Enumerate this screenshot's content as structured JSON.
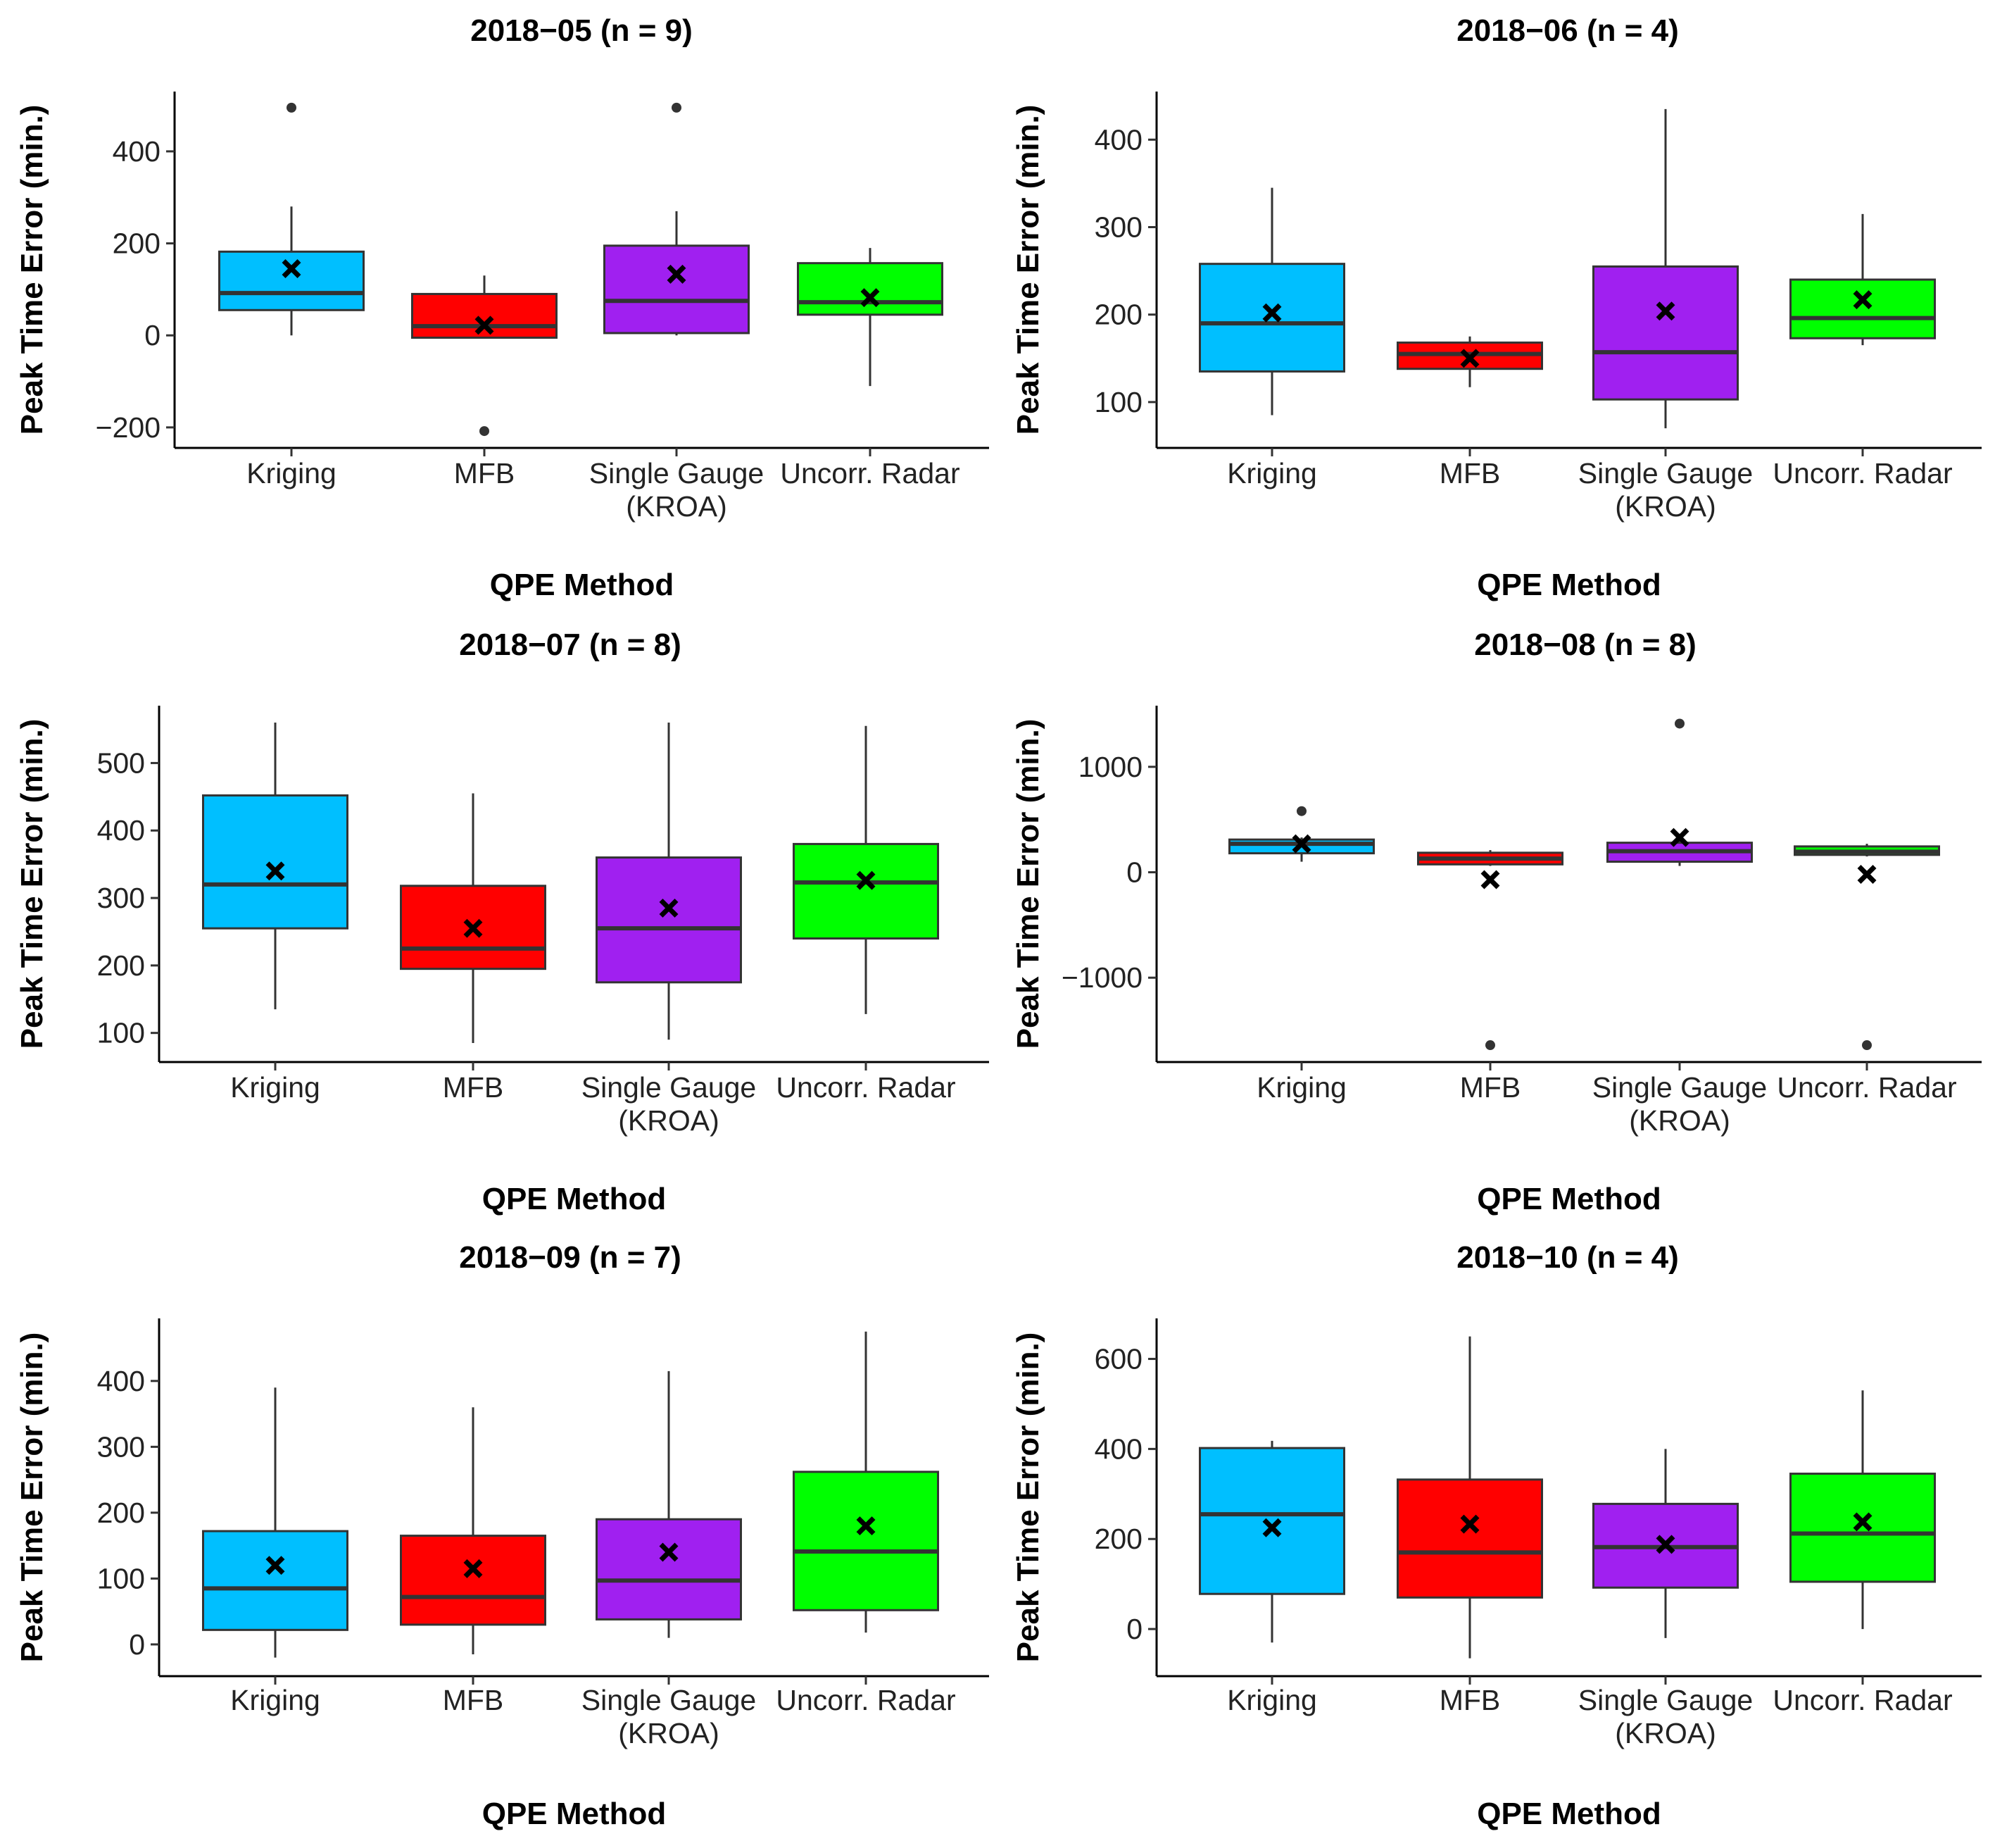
{
  "chart_data": [
    {
      "type": "boxplot",
      "title": "2018−05 (n = 9)",
      "xlabel": "QPE Method",
      "ylabel": "Peak Time Error (min.)",
      "ylim": [
        -240,
        530
      ],
      "yticks": [
        -200,
        0,
        200,
        400
      ],
      "yticklabels": [
        "−200",
        "0",
        "200",
        "400"
      ],
      "categories": [
        "Kriging",
        "MFB",
        "Single Gauge\n(KROA)",
        "Uncorr. Radar"
      ],
      "series": [
        {
          "name": "Kriging",
          "color": "#00BFFF",
          "whisker_low": 0,
          "q1": 55,
          "median": 92,
          "q3": 182,
          "whisker_high": 280,
          "mean": 145,
          "outliers": [
            495
          ]
        },
        {
          "name": "MFB",
          "color": "#FF0000",
          "whisker_low": -5,
          "q1": -5,
          "median": 20,
          "q3": 90,
          "whisker_high": 130,
          "mean": 22,
          "outliers": [
            -208
          ]
        },
        {
          "name": "Single Gauge (KROA)",
          "color": "#A020F0",
          "whisker_low": 0,
          "q1": 5,
          "median": 75,
          "q3": 195,
          "whisker_high": 270,
          "mean": 133,
          "outliers": [
            495
          ]
        },
        {
          "name": "Uncorr. Radar",
          "color": "#00FF00",
          "whisker_low": -110,
          "q1": 45,
          "median": 72,
          "q3": 157,
          "whisker_high": 190,
          "mean": 82,
          "outliers": []
        }
      ]
    },
    {
      "type": "boxplot",
      "title": "2018−06 (n = 4)",
      "xlabel": "QPE Method",
      "ylabel": "Peak Time Error (min.)",
      "ylim": [
        50,
        455
      ],
      "yticks": [
        100,
        200,
        300,
        400
      ],
      "yticklabels": [
        "100",
        "200",
        "300",
        "400"
      ],
      "categories": [
        "Kriging",
        "MFB",
        "Single Gauge\n(KROA)",
        "Uncorr. Radar"
      ],
      "series": [
        {
          "name": "Kriging",
          "color": "#00BFFF",
          "whisker_low": 85,
          "q1": 135,
          "median": 190,
          "q3": 258,
          "whisker_high": 345,
          "mean": 202,
          "outliers": []
        },
        {
          "name": "MFB",
          "color": "#FF0000",
          "whisker_low": 117,
          "q1": 138,
          "median": 155,
          "q3": 168,
          "whisker_high": 175,
          "mean": 150,
          "outliers": []
        },
        {
          "name": "Single Gauge (KROA)",
          "color": "#A020F0",
          "whisker_low": 70,
          "q1": 103,
          "median": 157,
          "q3": 255,
          "whisker_high": 435,
          "mean": 204,
          "outliers": []
        },
        {
          "name": "Uncorr. Radar",
          "color": "#00FF00",
          "whisker_low": 165,
          "q1": 173,
          "median": 196,
          "q3": 240,
          "whisker_high": 315,
          "mean": 217,
          "outliers": []
        }
      ]
    },
    {
      "type": "boxplot",
      "title": "2018−07 (n = 8)",
      "xlabel": "QPE Method",
      "ylabel": "Peak Time Error (min.)",
      "ylim": [
        60,
        585
      ],
      "yticks": [
        100,
        200,
        300,
        400,
        500
      ],
      "yticklabels": [
        "100",
        "200",
        "300",
        "400",
        "500"
      ],
      "categories": [
        "Kriging",
        "MFB",
        "Single Gauge\n(KROA)",
        "Uncorr. Radar"
      ],
      "series": [
        {
          "name": "Kriging",
          "color": "#00BFFF",
          "whisker_low": 135,
          "q1": 255,
          "median": 320,
          "q3": 452,
          "whisker_high": 560,
          "mean": 340,
          "outliers": []
        },
        {
          "name": "MFB",
          "color": "#FF0000",
          "whisker_low": 85,
          "q1": 195,
          "median": 225,
          "q3": 318,
          "whisker_high": 455,
          "mean": 255,
          "outliers": []
        },
        {
          "name": "Single Gauge (KROA)",
          "color": "#A020F0",
          "whisker_low": 90,
          "q1": 175,
          "median": 255,
          "q3": 360,
          "whisker_high": 560,
          "mean": 285,
          "outliers": []
        },
        {
          "name": "Uncorr. Radar",
          "color": "#00FF00",
          "whisker_low": 128,
          "q1": 240,
          "median": 323,
          "q3": 380,
          "whisker_high": 555,
          "mean": 326,
          "outliers": []
        }
      ]
    },
    {
      "type": "boxplot",
      "title": "2018−08 (n = 8)",
      "xlabel": "QPE Method",
      "ylabel": "Peak Time Error (min.)",
      "ylim": [
        -1780,
        1580
      ],
      "yticks": [
        -1000,
        0,
        1000
      ],
      "yticklabels": [
        "−1000",
        "0",
        "1000"
      ],
      "categories": [
        "Kriging",
        "MFB",
        "Single Gauge\n(KROA)",
        "Uncorr. Radar"
      ],
      "series": [
        {
          "name": "Kriging",
          "color": "#00BFFF",
          "whisker_low": 100,
          "q1": 180,
          "median": 270,
          "q3": 310,
          "whisker_high": 330,
          "mean": 270,
          "outliers": [
            580
          ]
        },
        {
          "name": "MFB",
          "color": "#FF0000",
          "whisker_low": 60,
          "q1": 75,
          "median": 130,
          "q3": 185,
          "whisker_high": 210,
          "mean": -70,
          "outliers": [
            -1640
          ]
        },
        {
          "name": "Single Gauge (KROA)",
          "color": "#A020F0",
          "whisker_low": 60,
          "q1": 100,
          "median": 200,
          "q3": 280,
          "whisker_high": 300,
          "mean": 330,
          "outliers": [
            1410
          ]
        },
        {
          "name": "Uncorr. Radar",
          "color": "#00FF00",
          "whisker_low": 150,
          "q1": 165,
          "median": 195,
          "q3": 245,
          "whisker_high": 270,
          "mean": -20,
          "outliers": [
            -1640
          ]
        }
      ]
    },
    {
      "type": "boxplot",
      "title": "2018−09 (n = 7)",
      "xlabel": "QPE Method",
      "ylabel": "Peak Time Error (min.)",
      "ylim": [
        -45,
        495
      ],
      "yticks": [
        0,
        100,
        200,
        300,
        400
      ],
      "yticklabels": [
        "0",
        "100",
        "200",
        "300",
        "400"
      ],
      "categories": [
        "Kriging",
        "MFB",
        "Single Gauge\n(KROA)",
        "Uncorr. Radar"
      ],
      "series": [
        {
          "name": "Kriging",
          "color": "#00BFFF",
          "whisker_low": -20,
          "q1": 22,
          "median": 85,
          "q3": 172,
          "whisker_high": 390,
          "mean": 120,
          "outliers": []
        },
        {
          "name": "MFB",
          "color": "#FF0000",
          "whisker_low": -15,
          "q1": 30,
          "median": 72,
          "q3": 165,
          "whisker_high": 360,
          "mean": 115,
          "outliers": []
        },
        {
          "name": "Single Gauge (KROA)",
          "color": "#A020F0",
          "whisker_low": 10,
          "q1": 38,
          "median": 97,
          "q3": 190,
          "whisker_high": 415,
          "mean": 140,
          "outliers": []
        },
        {
          "name": "Uncorr. Radar",
          "color": "#00FF00",
          "whisker_low": 18,
          "q1": 52,
          "median": 141,
          "q3": 262,
          "whisker_high": 475,
          "mean": 180,
          "outliers": []
        }
      ]
    },
    {
      "type": "boxplot",
      "title": "2018−10 (n = 4)",
      "xlabel": "QPE Method",
      "ylabel": "Peak Time Error (min.)",
      "ylim": [
        -100,
        690
      ],
      "yticks": [
        0,
        200,
        400,
        600
      ],
      "yticklabels": [
        "0",
        "200",
        "400",
        "600"
      ],
      "categories": [
        "Kriging",
        "MFB",
        "Single Gauge\n(KROA)",
        "Uncorr. Radar"
      ],
      "series": [
        {
          "name": "Kriging",
          "color": "#00BFFF",
          "whisker_low": -30,
          "q1": 78,
          "median": 255,
          "q3": 402,
          "whisker_high": 418,
          "mean": 225,
          "outliers": []
        },
        {
          "name": "MFB",
          "color": "#FF0000",
          "whisker_low": -65,
          "q1": 70,
          "median": 170,
          "q3": 332,
          "whisker_high": 650,
          "mean": 233,
          "outliers": []
        },
        {
          "name": "Single Gauge (KROA)",
          "color": "#A020F0",
          "whisker_low": -20,
          "q1": 92,
          "median": 182,
          "q3": 278,
          "whisker_high": 400,
          "mean": 188,
          "outliers": []
        },
        {
          "name": "Uncorr. Radar",
          "color": "#00FF00",
          "whisker_low": 0,
          "q1": 105,
          "median": 212,
          "q3": 345,
          "whisker_high": 530,
          "mean": 238,
          "outliers": []
        }
      ]
    }
  ]
}
